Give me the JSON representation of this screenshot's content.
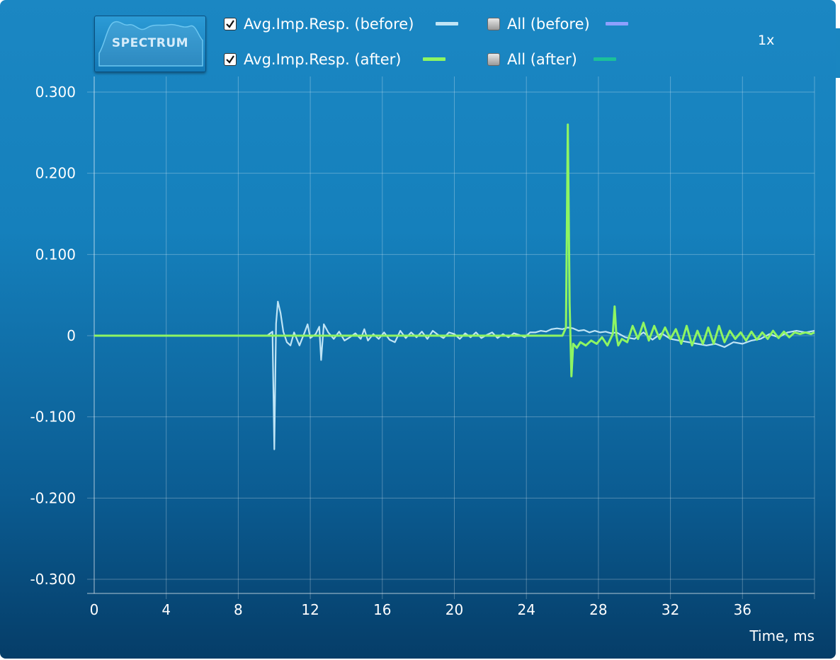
{
  "toolbar": {
    "spectrum_button": "SPECTRUM",
    "zoom": "1x"
  },
  "legend": [
    {
      "label": "Avg.Imp.Resp. (before)",
      "checked": true,
      "color": "#bfe4f5"
    },
    {
      "label": "Avg.Imp.Resp. (after)",
      "checked": true,
      "color": "#8ef562"
    },
    {
      "label": "All (before)",
      "checked": false,
      "color": "#8ea0ff"
    },
    {
      "label": "All (after)",
      "checked": false,
      "color": "#1bc09a"
    }
  ],
  "chart_data": {
    "type": "line",
    "xlabel": "Time, ms",
    "ylabel": "",
    "xlim": [
      0,
      40
    ],
    "ylim": [
      -0.3,
      0.3
    ],
    "x_ticks": [
      "0",
      "4",
      "8",
      "12",
      "16",
      "20",
      "24",
      "28",
      "32",
      "36"
    ],
    "y_ticks": [
      "0.300",
      "0.200",
      "0.100",
      "0",
      "-0.100",
      "-0.200",
      "-0.300"
    ],
    "grid": true,
    "series": [
      {
        "name": "Avg.Imp.Resp. (before)",
        "color": "#bfe4f5",
        "x": [
          0,
          9.6,
          9.9,
          10.0,
          10.1,
          10.2,
          10.35,
          10.5,
          10.7,
          10.9,
          11.1,
          11.4,
          11.7,
          11.85,
          12.0,
          12.3,
          12.5,
          12.6,
          12.75,
          13.0,
          13.3,
          13.6,
          13.9,
          14.2,
          14.5,
          14.8,
          15.0,
          15.2,
          15.5,
          15.8,
          16.1,
          16.4,
          16.7,
          17.0,
          17.3,
          17.6,
          17.9,
          18.2,
          18.5,
          18.8,
          19.1,
          19.4,
          19.7,
          20.0,
          20.3,
          20.6,
          20.9,
          21.2,
          21.5,
          21.8,
          22.1,
          22.4,
          22.7,
          23.0,
          23.3,
          23.6,
          23.9,
          24.2,
          24.5,
          24.8,
          25.1,
          25.4,
          25.7,
          26.0,
          26.3,
          26.6,
          26.9,
          27.2,
          27.5,
          27.8,
          28.1,
          28.4,
          28.7,
          29.0,
          29.5,
          30.0,
          30.5,
          31.0,
          31.5,
          32.0,
          32.5,
          33.0,
          33.5,
          34.0,
          34.5,
          35.0,
          35.5,
          36.0,
          36.5,
          37.0,
          37.5,
          38.0,
          38.5,
          39.0,
          39.5,
          40.0
        ],
        "y": [
          0,
          0,
          0.005,
          -0.14,
          0.015,
          0.042,
          0.028,
          0.005,
          -0.008,
          -0.012,
          0.004,
          -0.012,
          0.005,
          0.014,
          -0.003,
          0.002,
          0.011,
          -0.03,
          0.014,
          0.004,
          -0.004,
          0.005,
          -0.006,
          -0.002,
          0.003,
          -0.004,
          0.008,
          -0.006,
          0.002,
          -0.004,
          0.004,
          -0.005,
          -0.008,
          0.006,
          -0.003,
          0.004,
          -0.002,
          0.005,
          -0.004,
          0.006,
          0.001,
          -0.003,
          0.004,
          0.002,
          -0.004,
          0.003,
          -0.002,
          0.004,
          -0.003,
          0.001,
          0.004,
          -0.003,
          0.002,
          -0.002,
          0.003,
          0.001,
          -0.002,
          0.004,
          0.004,
          0.006,
          0.005,
          0.008,
          0.009,
          0.008,
          0.01,
          0.009,
          0.006,
          0.007,
          0.004,
          0.006,
          0.004,
          0.005,
          0.003,
          0.004,
          -0.002,
          -0.004,
          0.004,
          -0.005,
          0.003,
          -0.004,
          -0.006,
          -0.008,
          -0.01,
          -0.012,
          -0.01,
          -0.014,
          -0.008,
          -0.01,
          -0.006,
          -0.004,
          0.002,
          -0.002,
          0.004,
          0.006,
          0.004,
          0.006
        ]
      },
      {
        "name": "Avg.Imp.Resp. (after)",
        "color": "#8ef562",
        "x": [
          0,
          26.0,
          26.2,
          26.3,
          26.4,
          26.5,
          26.6,
          26.8,
          27.0,
          27.3,
          27.6,
          27.9,
          28.2,
          28.5,
          28.8,
          28.9,
          29.0,
          29.1,
          29.3,
          29.6,
          29.9,
          30.2,
          30.5,
          30.8,
          31.1,
          31.4,
          31.7,
          32.0,
          32.3,
          32.6,
          32.9,
          33.2,
          33.5,
          33.8,
          34.1,
          34.4,
          34.7,
          35.0,
          35.3,
          35.6,
          35.9,
          36.2,
          36.5,
          36.8,
          37.1,
          37.4,
          37.7,
          38.0,
          38.3,
          38.6,
          38.9,
          39.2,
          39.5,
          39.8,
          40.0
        ],
        "y": [
          0,
          0,
          0.01,
          0.26,
          0.04,
          -0.05,
          -0.01,
          -0.015,
          -0.008,
          -0.012,
          -0.006,
          -0.01,
          -0.002,
          -0.012,
          0.002,
          0.036,
          0.0,
          -0.012,
          -0.004,
          -0.008,
          0.012,
          -0.004,
          0.016,
          -0.006,
          0.012,
          -0.004,
          0.01,
          -0.004,
          0.008,
          -0.01,
          0.012,
          -0.012,
          0.006,
          -0.01,
          0.01,
          -0.01,
          0.012,
          -0.008,
          0.006,
          -0.004,
          0.004,
          -0.006,
          0.005,
          -0.005,
          0.004,
          -0.004,
          0.006,
          -0.003,
          0.005,
          -0.002,
          0.004,
          0.002,
          0.004,
          0.002,
          0.004
        ]
      }
    ]
  }
}
